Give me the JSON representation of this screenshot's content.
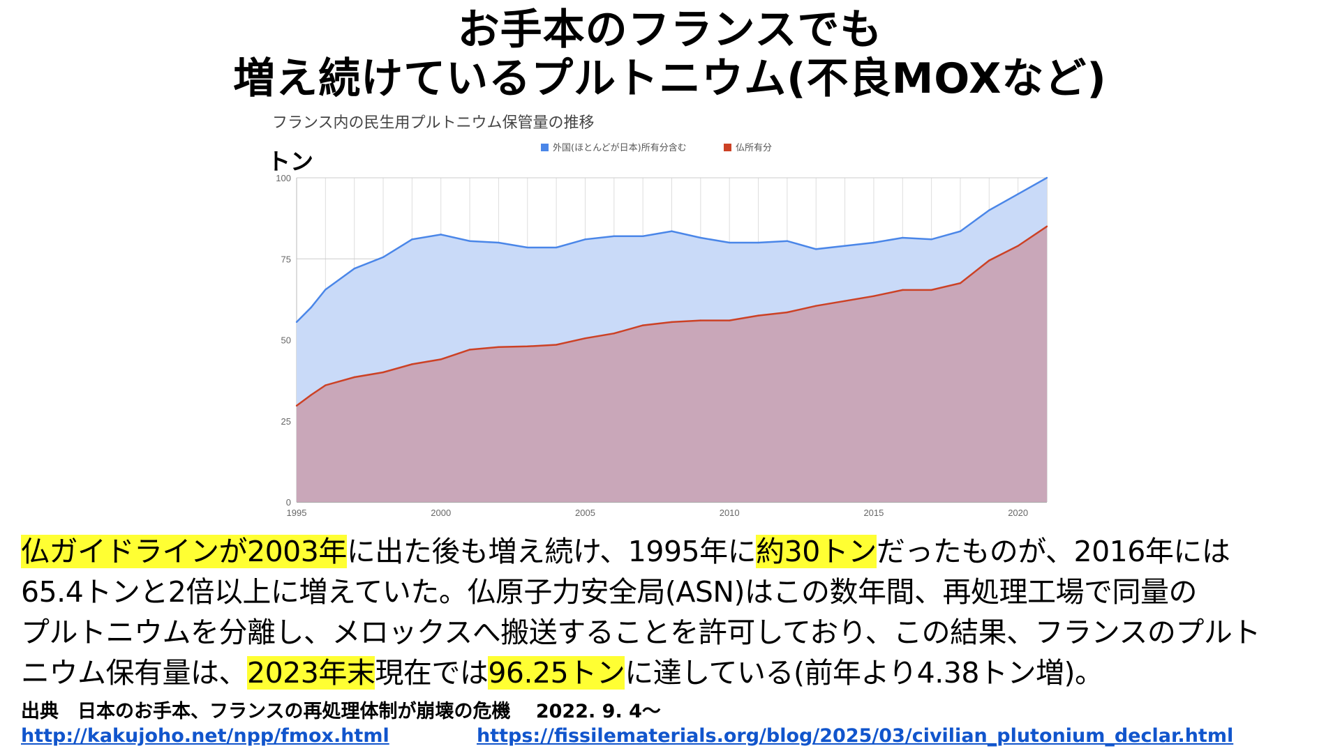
{
  "header": {
    "title_line1": "お手本のフランスでも",
    "title_line2": "増え続けているプルトニウム(不良MOXなど)"
  },
  "chart_data": {
    "type": "area",
    "title": "フランス内の民生用プルトニウム保管量の推移",
    "ylabel": "トン",
    "ylim": [
      0,
      100
    ],
    "xlim": [
      1995,
      2021
    ],
    "yticks": [
      0,
      25,
      50,
      75,
      100
    ],
    "xticks": [
      1995,
      2000,
      2005,
      2010,
      2015,
      2020
    ],
    "grid": true,
    "legend_position": "top",
    "x": [
      1995,
      1995.5,
      1996,
      1997,
      1998,
      1999,
      2000,
      2001,
      2002,
      2003,
      2004,
      2005,
      2006,
      2007,
      2008,
      2009,
      2010,
      2011,
      2012,
      2013,
      2014,
      2015,
      2016,
      2017,
      2018,
      2019,
      2020,
      2021
    ],
    "series": [
      {
        "name": "外国(ほとんどが日本)所有分含む",
        "color": "#4a86e8",
        "fill": "#c9daf8",
        "values": [
          55.5,
          60,
          65.5,
          72,
          75.5,
          81,
          82.5,
          80.5,
          80,
          78.5,
          78.5,
          81,
          82,
          82,
          83.5,
          81.5,
          80,
          80,
          80.5,
          78,
          79,
          80,
          81.5,
          81,
          83.5,
          90,
          95,
          100
        ]
      },
      {
        "name": "仏所有分",
        "color": "#cc4125",
        "fill": "#c9a7b9",
        "values": [
          29.7,
          33,
          36,
          38.5,
          40,
          42.5,
          44,
          47,
          47.8,
          48,
          48.5,
          50.5,
          52,
          54.5,
          55.5,
          56,
          56,
          57.5,
          58.5,
          60.5,
          62,
          63.5,
          65.4,
          65.4,
          67.5,
          74.5,
          79,
          85
        ]
      }
    ]
  },
  "paragraph": {
    "l1_a": "仏ガイドラインが2003年",
    "l1_b": "に出た後も増え続け、1995年に",
    "l1_c": "約30トン",
    "l1_d": "だったものが、2016年には",
    "l2": "65.4トンと2倍以上に増えていた。仏原子力安全局(ASN)はこの数年間、再処理工場で同量の",
    "l3": "プルトニウムを分離し、メロックスへ搬送することを許可しており、この結果、フランスのプルト",
    "l4_a": "ニウム保有量は、",
    "l4_b": "2023年末",
    "l4_c": "現在では",
    "l4_d": "96.25トン",
    "l4_e": "に達している(前年より4.38トン増)。",
    "highlight_color": "#ffff33"
  },
  "source": {
    "label": "出典　日本のお手本、フランスの再処理体制が崩壊の危機　 2022. 9. 4～",
    "link1": "http://kakujoho.net/npp/fmox.html",
    "link2": "https://fissilematerials.org/blog/2025/03/civilian_plutonium_declar.html"
  }
}
